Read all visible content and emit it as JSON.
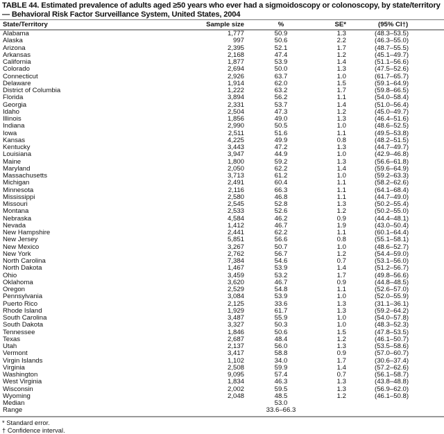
{
  "title": "TABLE 44. Estimated prevalence of adults aged ≥50 years who ever had a sigmoidoscopy or colonoscopy, by state/territory — Behavioral Risk Factor Surveillance System, United States, 2004",
  "headers": {
    "state": "State/Territory",
    "sample_size": "Sample size",
    "percent": "%",
    "se": "SE*",
    "ci": "(95% CI†)"
  },
  "rows": [
    [
      "Alabama",
      "1,777",
      "50.9",
      "1.3",
      "(48.3–53.5)"
    ],
    [
      "Alaska",
      "997",
      "50.6",
      "2.2",
      "(46.3–55.0)"
    ],
    [
      "Arizona",
      "2,395",
      "52.1",
      "1.7",
      "(48.7–55.5)"
    ],
    [
      "Arkansas",
      "2,168",
      "47.4",
      "1.2",
      "(45.1–49.7)"
    ],
    [
      "California",
      "1,877",
      "53.9",
      "1.4",
      "(51.1–56.6)"
    ],
    [
      "Colorado",
      "2,694",
      "50.0",
      "1.3",
      "(47.5–52.6)"
    ],
    [
      "Connecticut",
      "2,926",
      "63.7",
      "1.0",
      "(61.7–65.7)"
    ],
    [
      "Delaware",
      "1,914",
      "62.0",
      "1.5",
      "(59.1–64.9)"
    ],
    [
      "District of Columbia",
      "1,222",
      "63.2",
      "1.7",
      "(59.8–66.5)"
    ],
    [
      "Florida",
      "3,894",
      "56.2",
      "1.1",
      "(54.0–58.4)"
    ],
    [
      "Georgia",
      "2,331",
      "53.7",
      "1.4",
      "(51.0–56.4)"
    ],
    [
      "Idaho",
      "2,504",
      "47.3",
      "1.2",
      "(45.0–49.7)"
    ],
    [
      "Illinois",
      "1,856",
      "49.0",
      "1.3",
      "(46.4–51.6)"
    ],
    [
      "Indiana",
      "2,990",
      "50.5",
      "1.0",
      "(48.6–52.5)"
    ],
    [
      "Iowa",
      "2,511",
      "51.6",
      "1.1",
      "(49.5–53.8)"
    ],
    [
      "Kansas",
      "4,225",
      "49.9",
      "0.8",
      "(48.2–51.5)"
    ],
    [
      "Kentucky",
      "3,443",
      "47.2",
      "1.3",
      "(44.7–49.7)"
    ],
    [
      "Louisiana",
      "3,947",
      "44.9",
      "1.0",
      "(42.9–46.8)"
    ],
    [
      "Maine",
      "1,800",
      "59.2",
      "1.3",
      "(56.6–61.8)"
    ],
    [
      "Maryland",
      "2,050",
      "62.2",
      "1.4",
      "(59.6–64.9)"
    ],
    [
      "Massachusetts",
      "3,713",
      "61.2",
      "1.0",
      "(59.2–63.3)"
    ],
    [
      "Michigan",
      "2,491",
      "60.4",
      "1.1",
      "(58.2–62.6)"
    ],
    [
      "Minnesota",
      "2,116",
      "66.3",
      "1.1",
      "(64.1–68.4)"
    ],
    [
      "Mississippi",
      "2,580",
      "46.8",
      "1.1",
      "(44.7–49.0)"
    ],
    [
      "Missouri",
      "2,545",
      "52.8",
      "1.3",
      "(50.2–55.4)"
    ],
    [
      "Montana",
      "2,533",
      "52.6",
      "1.2",
      "(50.2–55.0)"
    ],
    [
      "Nebraska",
      "4,584",
      "46.2",
      "0.9",
      "(44.4–48.1)"
    ],
    [
      "Nevada",
      "1,412",
      "46.7",
      "1.9",
      "(43.0–50.4)"
    ],
    [
      "New Hampshire",
      "2,441",
      "62.2",
      "1.1",
      "(60.1–64.4)"
    ],
    [
      "New Jersey",
      "5,851",
      "56.6",
      "0.8",
      "(55.1–58.1)"
    ],
    [
      "New Mexico",
      "3,267",
      "50.7",
      "1.0",
      "(48.6–52.7)"
    ],
    [
      "New York",
      "2,762",
      "56.7",
      "1.2",
      "(54.4–59.0)"
    ],
    [
      "North Carolina",
      "7,384",
      "54.6",
      "0.7",
      "(53.1–56.0)"
    ],
    [
      "North Dakota",
      "1,467",
      "53.9",
      "1.4",
      "(51.2–56.7)"
    ],
    [
      "Ohio",
      "3,459",
      "53.2",
      "1.7",
      "(49.8–56.6)"
    ],
    [
      "Oklahoma",
      "3,620",
      "46.7",
      "0.9",
      "(44.8–48.5)"
    ],
    [
      "Oregon",
      "2,529",
      "54.8",
      "1.1",
      "(52.6–57.0)"
    ],
    [
      "Pennsylvania",
      "3,084",
      "53.9",
      "1.0",
      "(52.0–55.9)"
    ],
    [
      "Puerto Rico",
      "2,125",
      "33.6",
      "1.3",
      "(31.1–36.1)"
    ],
    [
      "Rhode Island",
      "1,929",
      "61.7",
      "1.3",
      "(59.2–64.2)"
    ],
    [
      "South Carolina",
      "3,487",
      "55.9",
      "1.0",
      "(54.0–57.8)"
    ],
    [
      "South Dakota",
      "3,327",
      "50.3",
      "1.0",
      "(48.3–52.3)"
    ],
    [
      "Tennessee",
      "1,846",
      "50.6",
      "1.5",
      "(47.8–53.5)"
    ],
    [
      "Texas",
      "2,687",
      "48.4",
      "1.2",
      "(46.1–50.7)"
    ],
    [
      "Utah",
      "2,137",
      "56.0",
      "1.3",
      "(53.5–58.6)"
    ],
    [
      "Vermont",
      "3,417",
      "58.8",
      "0.9",
      "(57.0–60.7)"
    ],
    [
      "Virgin Islands",
      "1,102",
      "34.0",
      "1.7",
      "(30.6–37.4)"
    ],
    [
      "Virginia",
      "2,508",
      "59.9",
      "1.4",
      "(57.2–62.6)"
    ],
    [
      "Washington",
      "9,095",
      "57.4",
      "0.7",
      "(56.1–58.7)"
    ],
    [
      "West Virginia",
      "1,834",
      "46.3",
      "1.3",
      "(43.8–48.8)"
    ],
    [
      "Wisconsin",
      "2,002",
      "59.5",
      "1.3",
      "(56.9–62.0)"
    ],
    [
      "Wyoming",
      "2,048",
      "48.5",
      "1.2",
      "(46.1–50.8)"
    ]
  ],
  "summary": {
    "median_label": "Median",
    "median_value": "53.0",
    "range_label": "Range",
    "range_value": "33.6–66.3"
  },
  "footnotes": [
    "* Standard error.",
    "† Confidence interval."
  ]
}
